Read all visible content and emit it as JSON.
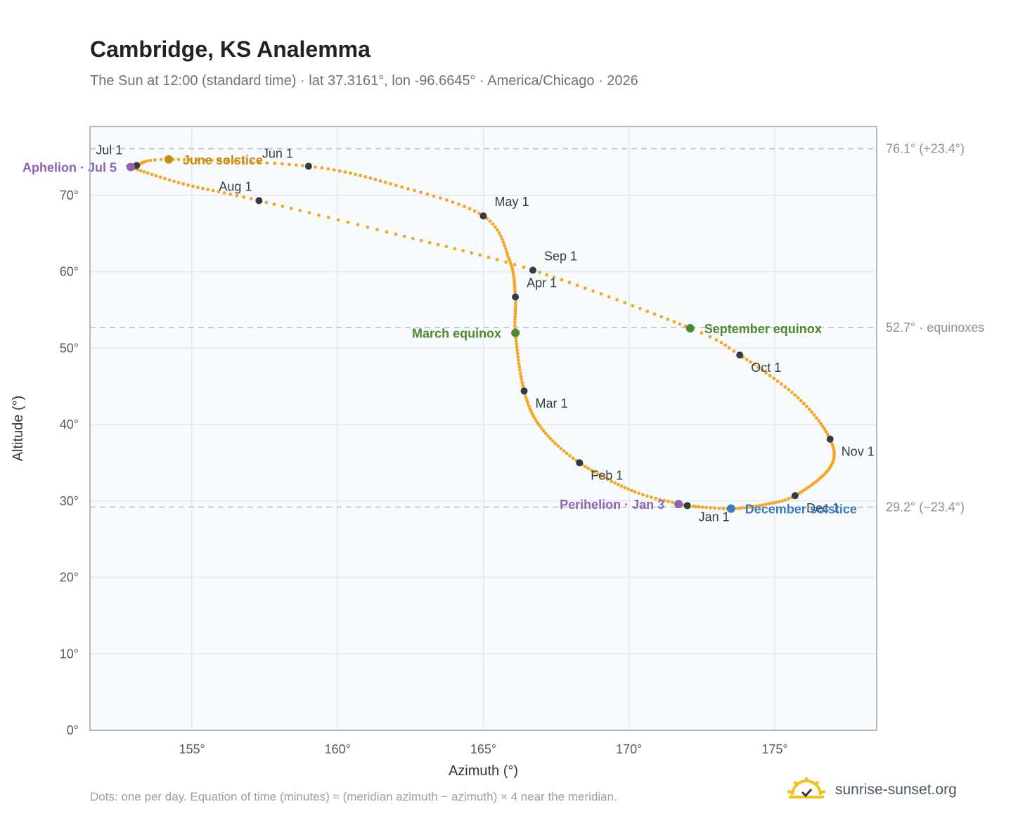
{
  "header": {
    "title": "Cambridge, KS Analemma",
    "subtitle": "The Sun at 12:00 (standard time) · lat 37.3161°, lon -96.6645° · America/Chicago · 2026"
  },
  "footer": {
    "note": "Dots: one per day. Equation of time (minutes) ≈ (meridian azimuth − azimuth) × 4 near the meridian.",
    "brand": "sunrise-sunset.org",
    "brand_icon": "sun-logo-icon"
  },
  "colors": {
    "path": "#f5a623",
    "month_marker": "#343a46",
    "june_solstice": "#c98a0e",
    "equinox": "#4a8a2a",
    "december_solstice": "#3b7ac2",
    "apsis": "#8e63b4",
    "plot_bg": "#f8fbfe",
    "grid": "#e3e8ee",
    "ref_line": "#b4c2d0"
  },
  "chart_data": {
    "type": "scatter",
    "xlabel": "Azimuth (°)",
    "ylabel": "Altitude (°)",
    "xlim": [
      151.5,
      178.5
    ],
    "ylim": [
      0,
      79
    ],
    "x_ticks": [
      155,
      160,
      165,
      170,
      175
    ],
    "x_tick_labels": [
      "155°",
      "160°",
      "165°",
      "170°",
      "175°"
    ],
    "y_ticks": [
      0,
      10,
      20,
      30,
      40,
      50,
      60,
      70
    ],
    "y_tick_labels": [
      "0°",
      "10°",
      "20°",
      "30°",
      "40°",
      "50°",
      "60°",
      "70°"
    ],
    "grid": true,
    "reference_lines": [
      {
        "y": 76.1,
        "label": "76.1° (+23.4°)"
      },
      {
        "y": 52.7,
        "label": "52.7° · equinoxes"
      },
      {
        "y": 29.2,
        "label": "29.2° (−23.4°)"
      }
    ],
    "anchors": [
      {
        "doy": 1,
        "x": 172.0,
        "y": 29.4
      },
      {
        "doy": 15,
        "x": 170.2,
        "y": 31.2
      },
      {
        "doy": 32,
        "x": 168.3,
        "y": 35.0
      },
      {
        "doy": 46,
        "x": 167.0,
        "y": 39.5
      },
      {
        "doy": 60,
        "x": 166.4,
        "y": 44.4
      },
      {
        "doy": 79,
        "x": 166.1,
        "y": 52.0
      },
      {
        "doy": 91,
        "x": 166.1,
        "y": 56.7
      },
      {
        "doy": 106,
        "x": 165.9,
        "y": 61.5
      },
      {
        "doy": 121,
        "x": 165.0,
        "y": 67.3
      },
      {
        "doy": 136,
        "x": 162.0,
        "y": 71.3
      },
      {
        "doy": 152,
        "x": 159.0,
        "y": 73.8
      },
      {
        "doy": 172,
        "x": 154.2,
        "y": 74.7
      },
      {
        "doy": 182,
        "x": 153.1,
        "y": 73.9
      },
      {
        "doy": 186,
        "x": 152.9,
        "y": 73.7
      },
      {
        "doy": 200,
        "x": 154.7,
        "y": 71.5
      },
      {
        "doy": 213,
        "x": 157.3,
        "y": 69.3
      },
      {
        "doy": 228,
        "x": 162.0,
        "y": 64.9
      },
      {
        "doy": 244,
        "x": 166.7,
        "y": 60.2
      },
      {
        "doy": 266,
        "x": 172.1,
        "y": 52.6
      },
      {
        "doy": 274,
        "x": 173.8,
        "y": 49.1
      },
      {
        "doy": 290,
        "x": 175.8,
        "y": 43.5
      },
      {
        "doy": 305,
        "x": 176.9,
        "y": 38.1
      },
      {
        "doy": 318,
        "x": 176.9,
        "y": 34.4
      },
      {
        "doy": 335,
        "x": 175.7,
        "y": 30.7
      },
      {
        "doy": 345,
        "x": 174.6,
        "y": 29.5
      },
      {
        "doy": 355,
        "x": 173.5,
        "y": 29.0
      },
      {
        "doy": 365,
        "x": 172.2,
        "y": 29.3
      }
    ],
    "months": [
      {
        "label": "Jan 1",
        "x": 172.0,
        "y": 29.4,
        "pos": "below"
      },
      {
        "label": "Feb 1",
        "x": 168.3,
        "y": 35.0,
        "pos": "below-right"
      },
      {
        "label": "Mar 1",
        "x": 166.4,
        "y": 44.4,
        "pos": "below-right"
      },
      {
        "label": "Apr 1",
        "x": 166.1,
        "y": 56.7,
        "pos": "above-right"
      },
      {
        "label": "May 1",
        "x": 165.0,
        "y": 67.3,
        "pos": "above-right"
      },
      {
        "label": "Jun 1",
        "x": 159.0,
        "y": 73.8,
        "pos": "above-left"
      },
      {
        "label": "Jul 1",
        "x": 153.1,
        "y": 73.9,
        "pos": "above-left"
      },
      {
        "label": "Aug 1",
        "x": 157.3,
        "y": 69.3,
        "pos": "above-left"
      },
      {
        "label": "Sep 1",
        "x": 166.7,
        "y": 60.2,
        "pos": "above-right"
      },
      {
        "label": "Oct 1",
        "x": 173.8,
        "y": 49.1,
        "pos": "below-right"
      },
      {
        "label": "Nov 1",
        "x": 176.9,
        "y": 38.1,
        "pos": "below-right"
      },
      {
        "label": "Dec 1",
        "x": 175.7,
        "y": 30.7,
        "pos": "below-right"
      }
    ],
    "events": [
      {
        "name": "June solstice",
        "x": 154.2,
        "y": 74.7,
        "color_key": "june_solstice",
        "side": "right"
      },
      {
        "name": "March equinox",
        "x": 166.1,
        "y": 52.0,
        "color_key": "equinox",
        "side": "left"
      },
      {
        "name": "September equinox",
        "x": 172.1,
        "y": 52.6,
        "color_key": "equinox",
        "side": "right"
      },
      {
        "name": "December solstice",
        "x": 173.5,
        "y": 29.0,
        "color_key": "december_solstice",
        "side": "right"
      },
      {
        "name": "Aphelion · Jul 5",
        "x": 152.9,
        "y": 73.7,
        "color_key": "apsis",
        "side": "left"
      },
      {
        "name": "Perihelion · Jan 3",
        "x": 171.7,
        "y": 29.6,
        "color_key": "apsis",
        "side": "left"
      }
    ]
  }
}
